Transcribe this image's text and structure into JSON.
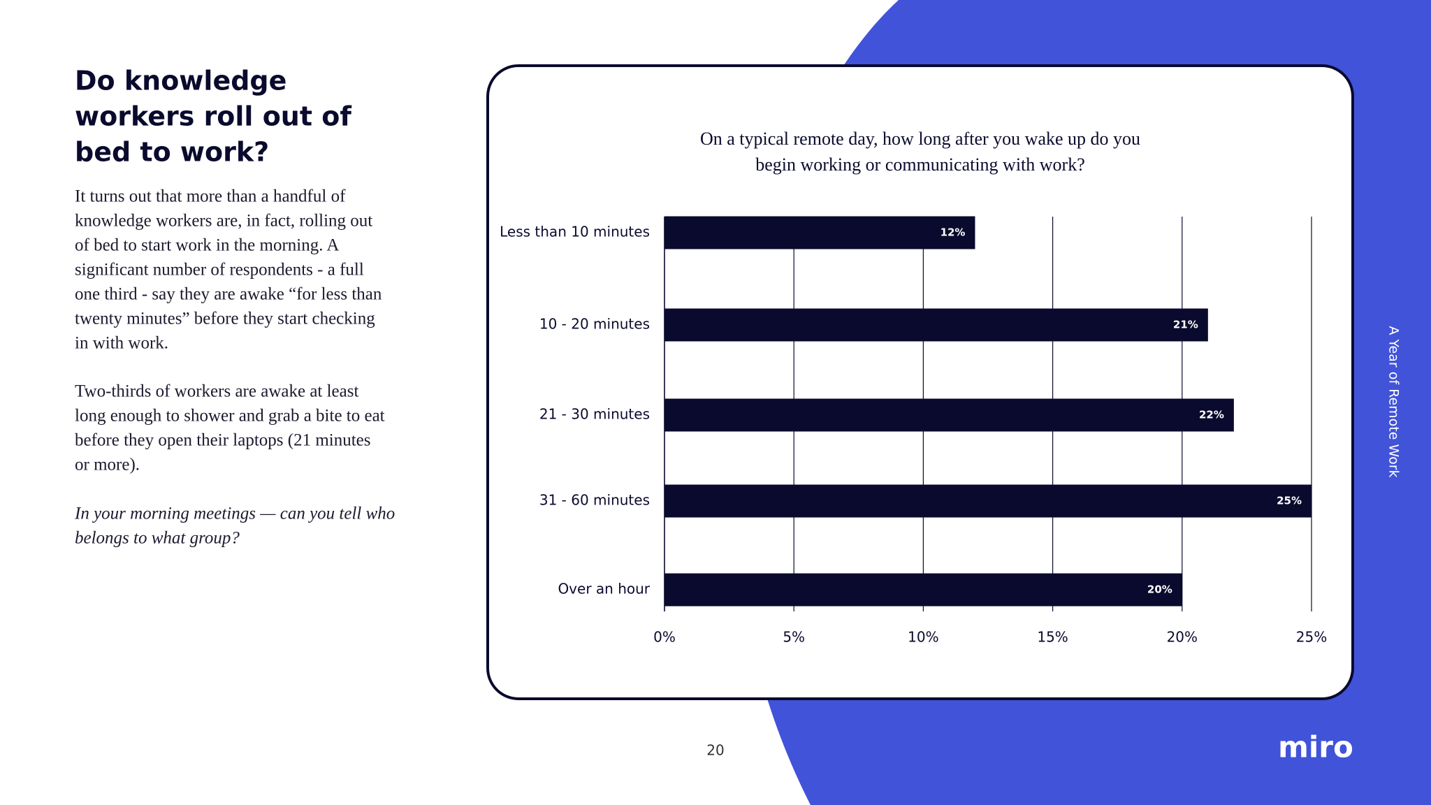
{
  "heading": [
    "Do knowledge",
    "workers roll out of",
    "bed to work?"
  ],
  "paragraphs": [
    [
      "It turns out that more than a handful of",
      "knowledge workers are, in fact, rolling out",
      "of bed to start work in the morning. A",
      "significant number of respondents - a full",
      "one third - say they are awake “for less than",
      "twenty minutes” before they start checking",
      "in with work."
    ],
    [
      "Two-thirds of workers are awake at least",
      "long enough to shower and grab a bite to eat",
      "before they open their laptops (21 minutes",
      "or more)."
    ],
    [
      "In your morning meetings — can you tell who",
      "belongs to what group?"
    ]
  ],
  "page_number": "20",
  "side_label": "A Year of Remote Work",
  "logo": "miro",
  "chart_data": {
    "type": "hbar",
    "title": [
      "On a typical remote day, how long after you wake up do you",
      "begin working or communicating with work?"
    ],
    "categories": [
      "Less than 10 minutes",
      "10 - 20 minutes",
      "21 - 30 minutes",
      "31 - 60 minutes",
      "Over an hour"
    ],
    "values": [
      12,
      21,
      22,
      25,
      20
    ],
    "value_labels": [
      "12%",
      "21%",
      "22%",
      "25%",
      "20%"
    ],
    "color": "#0a0a2e",
    "xlim": [
      0,
      25
    ],
    "xticks": [
      {
        "value": 0,
        "label": "0%"
      },
      {
        "value": 5,
        "label": "5%"
      },
      {
        "value": 10,
        "label": "10%"
      },
      {
        "value": 15,
        "label": "15%"
      },
      {
        "value": 20,
        "label": "20%"
      },
      {
        "value": 25,
        "label": "25%"
      }
    ],
    "grid": true
  }
}
